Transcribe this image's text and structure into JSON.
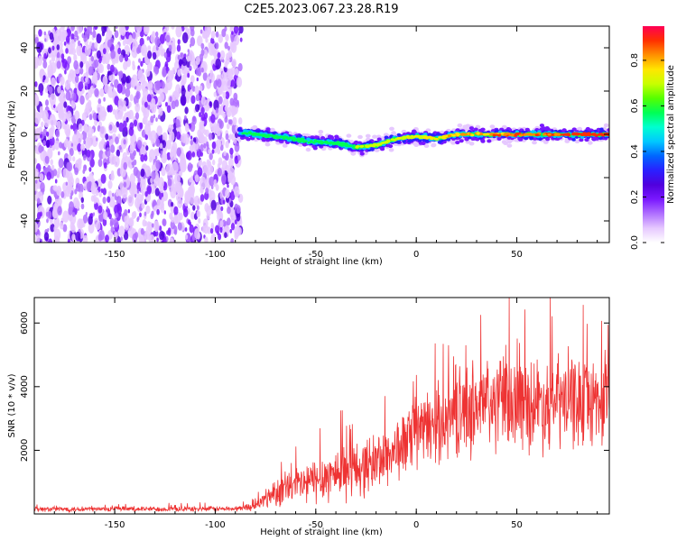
{
  "title": "C2E5.2023.067.23.28.R19",
  "colors": {
    "snr_line": "#ee3333",
    "colormap": [
      "#ffffff",
      "#e6c8ff",
      "#b070ff",
      "#7a18ff",
      "#5000dd",
      "#2a20ff",
      "#0066ff",
      "#00c8ff",
      "#00ffd0",
      "#00ff55",
      "#55ff00",
      "#c8ff00",
      "#ffe600",
      "#ff9000",
      "#ff3000",
      "#ff0055"
    ]
  },
  "chart_data": [
    {
      "type": "heatmap",
      "name": "spectrogram",
      "title": "C2E5.2023.067.23.28.R19",
      "xlabel": "Height of straight line (km)",
      "ylabel": "Frequency (Hz)",
      "xlim": [
        -190,
        96
      ],
      "ylim": [
        -50,
        50
      ],
      "x_ticks": [
        -150,
        -100,
        -50,
        0,
        50
      ],
      "y_ticks": [
        -40,
        -20,
        0,
        20,
        40
      ],
      "noise_region_x": [
        -190,
        -87
      ],
      "signal_track": [
        {
          "x": -88,
          "f": 1
        },
        {
          "x": -70,
          "f": -1
        },
        {
          "x": -55,
          "f": -3
        },
        {
          "x": -40,
          "f": -4
        },
        {
          "x": -30,
          "f": -6
        },
        {
          "x": -20,
          "f": -5
        },
        {
          "x": -10,
          "f": -2
        },
        {
          "x": 0,
          "f": -1
        },
        {
          "x": 10,
          "f": -2
        },
        {
          "x": 20,
          "f": 0
        },
        {
          "x": 40,
          "f": 0
        },
        {
          "x": 60,
          "f": 0
        },
        {
          "x": 80,
          "f": 0
        },
        {
          "x": 96,
          "f": 0
        }
      ],
      "colorbar": {
        "label": "Normalized spectral amplitude",
        "range": [
          0,
          0.95
        ],
        "ticks": [
          "0.0",
          "0.2",
          "0.4",
          "0.6",
          "0.8"
        ],
        "tick_values": [
          0,
          0.2,
          0.4,
          0.6,
          0.8
        ]
      }
    },
    {
      "type": "line",
      "name": "snr",
      "xlabel": "Height of straight line (km)",
      "ylabel": "SNR (10 * v/v)",
      "xlim": [
        -190,
        96
      ],
      "ylim": [
        0,
        6800
      ],
      "x_ticks": [
        -150,
        -100,
        -50,
        0,
        50
      ],
      "y_ticks": [
        2000,
        4000,
        6000
      ],
      "envelope": [
        {
          "x": -190,
          "mean": 150,
          "spread": 90
        },
        {
          "x": -90,
          "mean": 160,
          "spread": 90
        },
        {
          "x": -80,
          "mean": 250,
          "spread": 150
        },
        {
          "x": -70,
          "mean": 700,
          "spread": 500
        },
        {
          "x": -55,
          "mean": 950,
          "spread": 750
        },
        {
          "x": -40,
          "mean": 1300,
          "spread": 950
        },
        {
          "x": -25,
          "mean": 1500,
          "spread": 1000
        },
        {
          "x": -10,
          "mean": 2000,
          "spread": 1100
        },
        {
          "x": 0,
          "mean": 2500,
          "spread": 1200
        },
        {
          "x": 15,
          "mean": 3000,
          "spread": 1400
        },
        {
          "x": 30,
          "mean": 3400,
          "spread": 1700
        },
        {
          "x": 50,
          "mean": 3500,
          "spread": 1600
        },
        {
          "x": 70,
          "mean": 3500,
          "spread": 1700
        },
        {
          "x": 96,
          "mean": 3600,
          "spread": 1500
        }
      ]
    }
  ]
}
